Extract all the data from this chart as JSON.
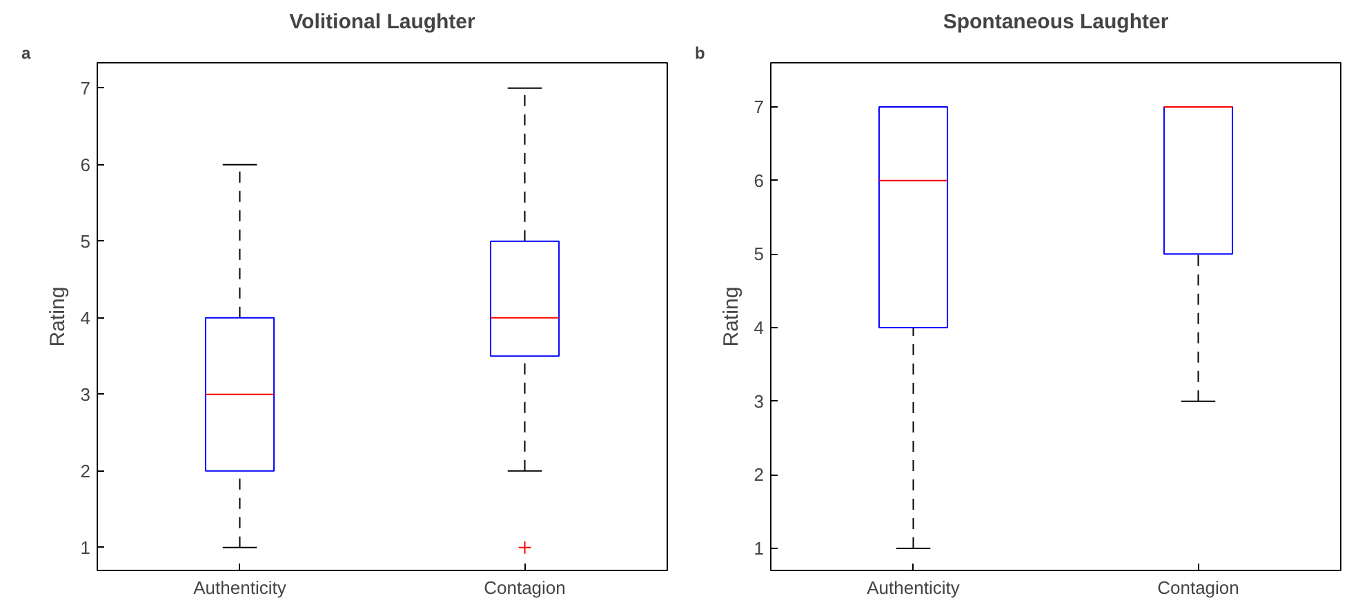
{
  "chart_data": [
    {
      "type": "box",
      "title": "Volitional Laughter",
      "ylabel": "Rating",
      "annotations": [
        "a"
      ],
      "categories": [
        "Authenticity",
        "Contagion"
      ],
      "ylim": [
        0.7,
        7.33
      ],
      "yticks": [
        1,
        2,
        3,
        4,
        5,
        6,
        7
      ],
      "grid": false,
      "marker": "cross",
      "boxes": [
        {
          "low": 1,
          "q1": 2,
          "median": 3,
          "q3": 4,
          "high": 6
        },
        {
          "low": 2,
          "q1": 3.5,
          "median": 4,
          "q3": 5,
          "high": 7,
          "outliers": [
            1
          ]
        }
      ]
    },
    {
      "type": "box",
      "title": "Spontaneous Laughter",
      "ylabel": "Rating",
      "annotations": [
        "b"
      ],
      "categories": [
        "Authenticity",
        "Contagion"
      ],
      "ylim": [
        0.7,
        7.6
      ],
      "yticks": [
        1,
        2,
        3,
        4,
        5,
        6,
        7
      ],
      "grid": false,
      "marker": "cross",
      "boxes": [
        {
          "low": 1,
          "q1": 4,
          "median": 6,
          "q3": 7,
          "high": 7
        },
        {
          "low": 3,
          "q1": 5,
          "median": 7,
          "q3": 7,
          "high": 7
        }
      ]
    }
  ]
}
